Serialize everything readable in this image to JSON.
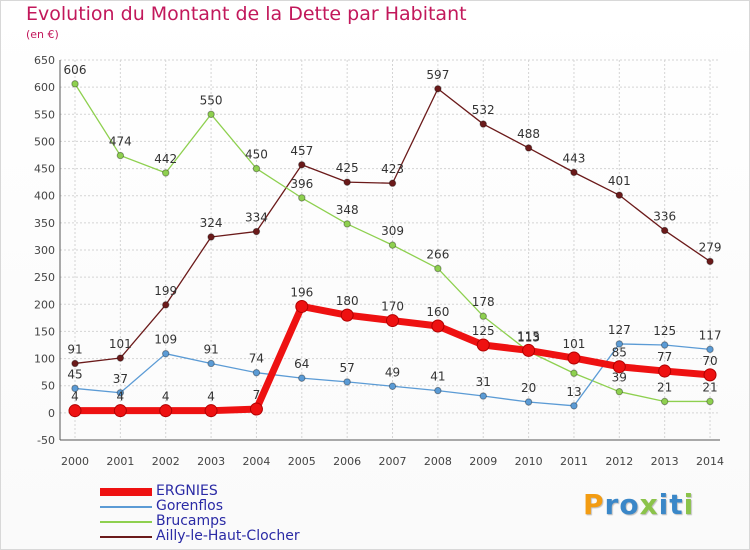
{
  "header": {
    "title": "Evolution du Montant de la Dette par Habitant",
    "unit": "(en €)"
  },
  "logo": {
    "text": "Proxiti",
    "colors": [
      "#f39c12",
      "#3a87c8",
      "#3a87c8",
      "#8bc34a",
      "#3a87c8",
      "#3a87c8",
      "#8bc34a"
    ]
  },
  "chart_data": {
    "type": "line",
    "title": "Evolution du Montant de la Dette par Habitant",
    "subtitle": "(en €)",
    "xlabel": "",
    "ylabel": "",
    "ylim": [
      -50,
      650
    ],
    "y_ticks": [
      -50,
      0,
      50,
      100,
      150,
      200,
      250,
      300,
      350,
      400,
      450,
      500,
      550,
      600,
      650
    ],
    "grid": true,
    "legend_position": "bottom-left",
    "x": [
      "2000",
      "2001",
      "2002",
      "2003",
      "2004",
      "2005",
      "2006",
      "2007",
      "2008",
      "2009",
      "2010",
      "2011",
      "2012",
      "2013",
      "2014"
    ],
    "series": [
      {
        "name": "Ailly-le-Haut-Clocher",
        "color": "#6b1a1a",
        "values": [
          91,
          101,
          199,
          324,
          334,
          457,
          425,
          423,
          597,
          532,
          488,
          443,
          401,
          336,
          279
        ]
      },
      {
        "name": "Brucamps",
        "color": "#8ed04f",
        "values": [
          606,
          474,
          442,
          550,
          450,
          396,
          348,
          309,
          266,
          178,
          113,
          73,
          39,
          21,
          21
        ]
      },
      {
        "name": "Gorenflos",
        "color": "#5b9bd5",
        "values": [
          45,
          37,
          109,
          91,
          74,
          64,
          57,
          49,
          41,
          31,
          20,
          13,
          127,
          125,
          117
        ]
      },
      {
        "name": "ERGNIES",
        "color": "#ee1111",
        "values": [
          4,
          4,
          4,
          4,
          7,
          196,
          180,
          170,
          160,
          125,
          115,
          101,
          85,
          77,
          70
        ]
      }
    ],
    "data_labels": {
      "Ailly-le-Haut-Clocher": [
        "91",
        "101",
        "199",
        "324",
        "334",
        "457",
        "425",
        "423",
        "597",
        "532",
        "488",
        "443",
        "401",
        "336",
        "279"
      ],
      "Brucamps": [
        "606",
        "474",
        "442",
        "550",
        "450",
        "396",
        "348",
        "309",
        "266",
        "178",
        "113",
        "",
        "39",
        "21",
        "21"
      ],
      "Gorenflos": [
        "45",
        "37",
        "109",
        "91",
        "74",
        "64",
        "57",
        "49",
        "41",
        "31",
        "20",
        "13",
        "127",
        "125",
        "117"
      ],
      "ERGNIES": [
        "4",
        "4",
        "4",
        "4",
        "7",
        "196",
        "180",
        "170",
        "160",
        "125",
        "115",
        "101",
        "85",
        "77",
        "70"
      ]
    },
    "legend_order": [
      "ERGNIES",
      "Gorenflos",
      "Brucamps",
      "Ailly-le-Haut-Clocher"
    ]
  }
}
